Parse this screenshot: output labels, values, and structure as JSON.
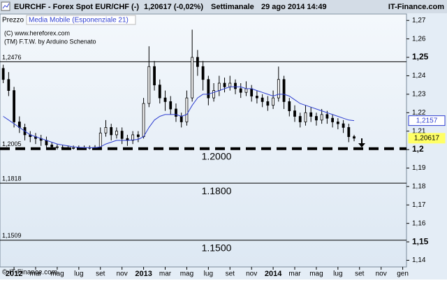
{
  "chart_data": {
    "type": "candlestick",
    "header": {
      "symbol": "EURCHF - Forex Spot EUR/CHF (-)",
      "quote": "1,20617 (-0,02%)",
      "period": "Settimanale",
      "datetime": "29 ago 2014 14:49",
      "brand": "IT-Finance.com"
    },
    "legend": [
      "Prezzo",
      "Media Mobile (Esponenziale 21)"
    ],
    "annotations": [
      "(C) www.hereforex.com",
      "(TM) F.T.W. by Arduino Schenato"
    ],
    "footer": "© IT-Finance.com",
    "x": [
      -1,
      -0.5,
      0,
      0.5,
      1,
      1.5,
      2,
      2.5,
      3,
      3.5,
      4,
      4.5,
      5,
      5.5,
      6,
      6.5,
      7,
      7.5,
      8,
      8.5,
      9,
      9.5,
      10,
      10.5,
      11,
      11.5,
      12,
      12.5,
      13,
      13.5,
      14,
      14.5,
      15,
      15.5,
      16,
      16.5,
      17,
      17.5,
      18,
      18.5,
      19,
      19.5,
      20,
      20.5,
      21,
      21.5,
      22,
      22.5,
      23,
      23.5,
      24,
      24.5,
      25,
      25.5,
      26,
      26.5,
      27,
      27.5,
      28,
      28.5,
      29,
      29.5,
      30,
      30.5,
      31,
      31.5
    ],
    "open": [
      1.244,
      1.238,
      1.232,
      1.215,
      1.212,
      1.208,
      1.207,
      1.206,
      1.205,
      1.2025,
      1.2015,
      1.2012,
      1.201,
      1.2008,
      1.201,
      1.2009,
      1.201,
      1.2011,
      1.2012,
      1.209,
      1.212,
      1.208,
      1.21,
      1.206,
      1.205,
      1.208,
      1.207,
      1.225,
      1.245,
      1.235,
      1.228,
      1.226,
      1.222,
      1.218,
      1.215,
      1.228,
      1.25,
      1.245,
      1.238,
      1.228,
      1.232,
      1.236,
      1.234,
      1.236,
      1.233,
      1.231,
      1.233,
      1.229,
      1.228,
      1.226,
      1.224,
      1.228,
      1.238,
      1.226,
      1.221,
      1.218,
      1.215,
      1.22,
      1.218,
      1.216,
      1.219,
      1.217,
      1.215,
      1.214,
      1.212,
      1.207
    ],
    "high": [
      1.246,
      1.242,
      1.234,
      1.218,
      1.214,
      1.21,
      1.209,
      1.208,
      1.207,
      1.204,
      1.203,
      1.2025,
      1.2022,
      1.2022,
      1.2022,
      1.2022,
      1.2022,
      1.2024,
      1.212,
      1.216,
      1.214,
      1.212,
      1.212,
      1.208,
      1.21,
      1.21,
      1.228,
      1.256,
      1.248,
      1.238,
      1.232,
      1.229,
      1.225,
      1.22,
      1.232,
      1.265,
      1.254,
      1.248,
      1.24,
      1.236,
      1.24,
      1.239,
      1.24,
      1.238,
      1.236,
      1.237,
      1.235,
      1.232,
      1.23,
      1.229,
      1.232,
      1.245,
      1.24,
      1.228,
      1.224,
      1.22,
      1.224,
      1.223,
      1.22,
      1.222,
      1.221,
      1.219,
      1.217,
      1.216,
      1.214,
      1.208
    ],
    "low": [
      1.236,
      1.229,
      1.212,
      1.209,
      1.205,
      1.204,
      1.203,
      1.202,
      1.2005,
      1.2,
      1.2,
      1.2,
      1.2,
      1.2,
      1.2,
      1.2,
      1.2,
      1.2,
      1.2005,
      1.207,
      1.205,
      1.206,
      1.203,
      1.202,
      1.203,
      1.204,
      1.206,
      1.223,
      1.232,
      1.225,
      1.221,
      1.219,
      1.215,
      1.212,
      1.213,
      1.226,
      1.24,
      1.232,
      1.224,
      1.226,
      1.229,
      1.231,
      1.232,
      1.23,
      1.228,
      1.229,
      1.226,
      1.225,
      1.223,
      1.221,
      1.222,
      1.226,
      1.222,
      1.218,
      1.215,
      1.212,
      1.213,
      1.215,
      1.213,
      1.214,
      1.214,
      1.212,
      1.211,
      1.209,
      1.204,
      1.2045
    ],
    "close": [
      1.238,
      1.232,
      1.215,
      1.212,
      1.208,
      1.207,
      1.206,
      1.205,
      1.2025,
      1.2015,
      1.2012,
      1.201,
      1.2008,
      1.201,
      1.2009,
      1.201,
      1.2011,
      1.2012,
      1.209,
      1.212,
      1.208,
      1.21,
      1.206,
      1.205,
      1.208,
      1.207,
      1.225,
      1.245,
      1.235,
      1.228,
      1.226,
      1.222,
      1.218,
      1.215,
      1.228,
      1.25,
      1.245,
      1.238,
      1.228,
      1.232,
      1.236,
      1.234,
      1.236,
      1.233,
      1.231,
      1.233,
      1.229,
      1.228,
      1.226,
      1.224,
      1.228,
      1.238,
      1.226,
      1.221,
      1.218,
      1.215,
      1.22,
      1.218,
      1.216,
      1.219,
      1.217,
      1.215,
      1.214,
      1.212,
      1.207,
      1.20617
    ],
    "series": [
      {
        "name": "Media Mobile (Esponenziale 21)",
        "color": "#2f3fd0",
        "values": [
          1.218,
          1.216,
          1.214,
          1.212,
          1.21,
          1.208,
          1.207,
          1.206,
          1.205,
          1.204,
          1.203,
          1.2025,
          1.202,
          1.2015,
          1.2012,
          1.2011,
          1.201,
          1.201,
          1.2015,
          1.203,
          1.204,
          1.205,
          1.205,
          1.205,
          1.2052,
          1.2055,
          1.207,
          1.212,
          1.216,
          1.218,
          1.219,
          1.219,
          1.219,
          1.218,
          1.219,
          1.224,
          1.228,
          1.23,
          1.23,
          1.231,
          1.232,
          1.233,
          1.234,
          1.234,
          1.234,
          1.233,
          1.233,
          1.232,
          1.231,
          1.23,
          1.229,
          1.23,
          1.23,
          1.229,
          1.227,
          1.225,
          1.224,
          1.223,
          1.222,
          1.221,
          1.22,
          1.219,
          1.218,
          1.217,
          1.216,
          1.2157
        ]
      }
    ],
    "levels": [
      {
        "value": 1.2476,
        "label": "1,2476"
      },
      {
        "value": 1.2005,
        "label": "1,2005",
        "caption": "1.2000",
        "dashed": true
      },
      {
        "value": 1.1818,
        "label": "1,1818",
        "caption": "1.1800"
      },
      {
        "value": 1.1509,
        "label": "1,1509",
        "caption": "1.1500"
      }
    ],
    "price_labels": [
      {
        "value": 1.2157,
        "label": "1,2157",
        "color": "#2f3fd0"
      },
      {
        "value": 1.20617,
        "label": "1,20617",
        "color": "#ffff66"
      }
    ],
    "xlim": [
      -1.3,
      36.35
    ],
    "xticks": [
      {
        "value": 0,
        "label": "2012"
      },
      {
        "value": 2,
        "label": "mar"
      },
      {
        "value": 4,
        "label": "mag"
      },
      {
        "value": 6,
        "label": "lug"
      },
      {
        "value": 8,
        "label": "set"
      },
      {
        "value": 10,
        "label": "nov"
      },
      {
        "value": 12,
        "label": "2013"
      },
      {
        "value": 14,
        "label": "mar"
      },
      {
        "value": 16,
        "label": "mag"
      },
      {
        "value": 18,
        "label": "lug"
      },
      {
        "value": 20,
        "label": "set"
      },
      {
        "value": 22,
        "label": "nov"
      },
      {
        "value": 24,
        "label": "2014"
      },
      {
        "value": 26,
        "label": "mar"
      },
      {
        "value": 28,
        "label": "mag"
      },
      {
        "value": 30,
        "label": "lug"
      },
      {
        "value": 32,
        "label": "set"
      },
      {
        "value": 34,
        "label": "nov"
      },
      {
        "value": 36,
        "label": "gen"
      }
    ],
    "ylim": [
      1.1364,
      1.2735
    ],
    "yticks": [
      {
        "value": 1.14,
        "label": "1,14"
      },
      {
        "value": 1.15,
        "label": "1,15",
        "bold": true
      },
      {
        "value": 1.16,
        "label": "1,16"
      },
      {
        "value": 1.17,
        "label": "1,17"
      },
      {
        "value": 1.18,
        "label": "1,18"
      },
      {
        "value": 1.19,
        "label": "1,19"
      },
      {
        "value": 1.2,
        "label": "1,2",
        "bold": true
      },
      {
        "value": 1.21,
        "label": "1,21"
      },
      {
        "value": 1.22,
        "label": "1,22"
      },
      {
        "value": 1.23,
        "label": "1,23"
      },
      {
        "value": 1.24,
        "label": "1,24"
      },
      {
        "value": 1.25,
        "label": "1,25",
        "bold": true
      },
      {
        "value": 1.26,
        "label": "1,26"
      },
      {
        "value": 1.27,
        "label": "1,27"
      }
    ]
  }
}
